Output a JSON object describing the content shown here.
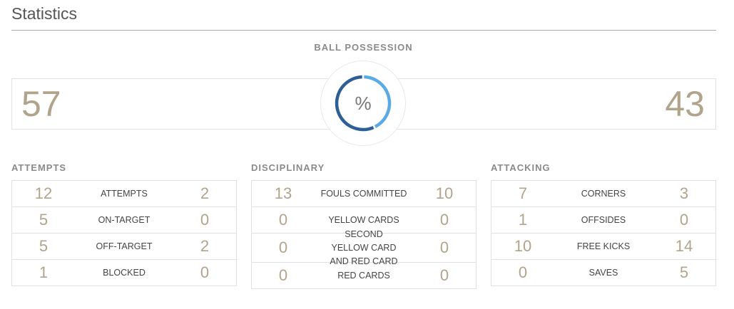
{
  "page_title": "Statistics",
  "possession": {
    "label": "BALL POSSESSION",
    "home": "57",
    "away": "43",
    "symbol": "%",
    "home_fraction": 0.57,
    "colors": {
      "home": "#2d5e96",
      "away": "#5aaae6"
    }
  },
  "attempts": {
    "title": "ATTEMPTS",
    "rows": [
      {
        "home": "12",
        "label": "ATTEMPTS",
        "away": "2"
      },
      {
        "home": "5",
        "label": "ON-TARGET",
        "away": "0"
      },
      {
        "home": "5",
        "label": "OFF-TARGET",
        "away": "2"
      },
      {
        "home": "1",
        "label": "BLOCKED",
        "away": "0"
      }
    ]
  },
  "disciplinary": {
    "title": "DISCIPLINARY",
    "rows": [
      {
        "home": "13",
        "label": "FOULS COMMITTED",
        "away": "10"
      },
      {
        "home": "0",
        "label": "YELLOW CARDS",
        "away": "0"
      },
      {
        "home": "0",
        "label": "SECOND YELLOW CARD AND RED CARD",
        "away": "0"
      },
      {
        "home": "0",
        "label": "RED CARDS",
        "away": "0"
      }
    ]
  },
  "attacking": {
    "title": "ATTACKING",
    "rows": [
      {
        "home": "7",
        "label": "CORNERS",
        "away": "3"
      },
      {
        "home": "1",
        "label": "OFFSIDES",
        "away": "0"
      },
      {
        "home": "10",
        "label": "FREE KICKS",
        "away": "14"
      },
      {
        "home": "0",
        "label": "SAVES",
        "away": "5"
      }
    ]
  }
}
